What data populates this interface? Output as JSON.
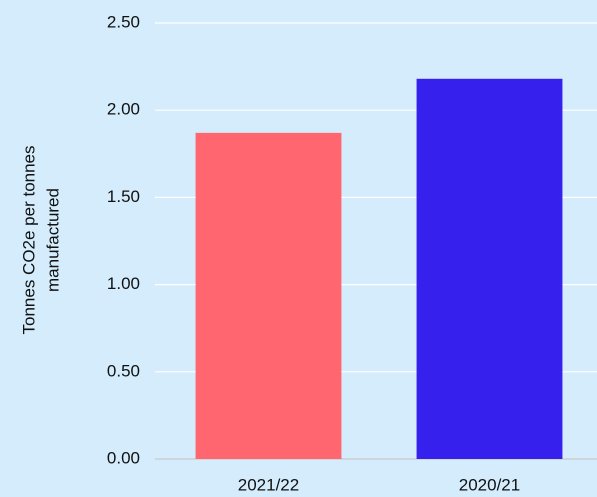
{
  "chart_data": {
    "type": "bar",
    "y_label": [
      "Tonnes CO2e per tonnes",
      "manufactured"
    ],
    "categories": [
      "2021/22",
      "2020/21"
    ],
    "values": [
      1.87,
      2.18
    ],
    "colors": [
      "#ff6670",
      "#3520ee"
    ],
    "ylim": [
      0,
      2.5
    ],
    "yticks": [
      {
        "value": 0,
        "label": "0.00"
      },
      {
        "value": 0.5,
        "label": "0.50"
      },
      {
        "value": 1,
        "label": "1.00"
      },
      {
        "value": 1.5,
        "label": "1.50"
      },
      {
        "value": 2,
        "label": "2.00"
      },
      {
        "value": 2.5,
        "label": "2.50"
      }
    ],
    "grid": true
  }
}
